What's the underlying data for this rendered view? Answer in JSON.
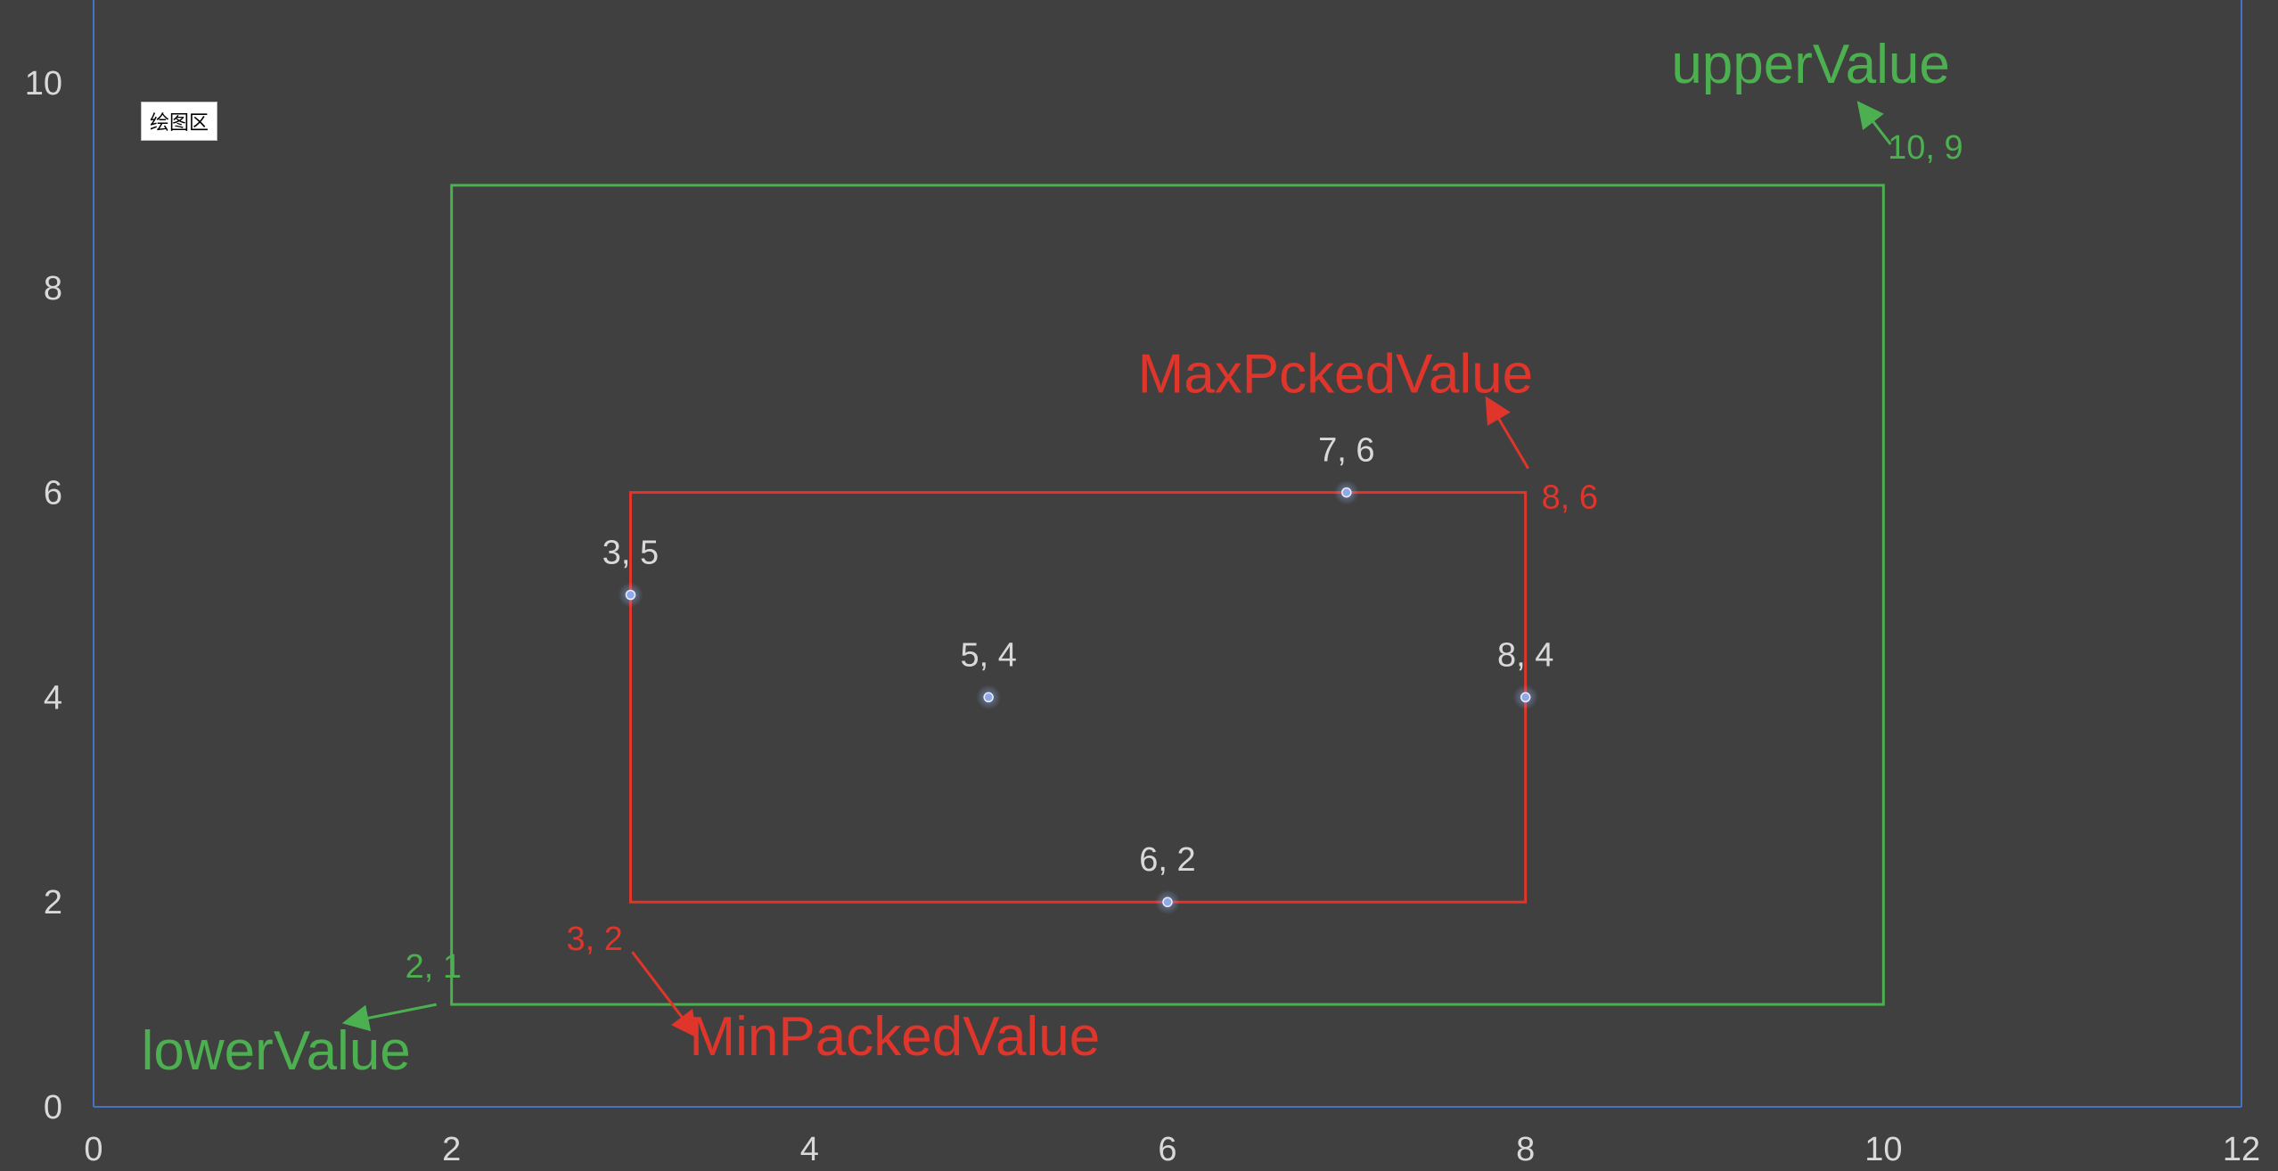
{
  "plot_area_label": "绘图区",
  "colors": {
    "background": "#404040",
    "axis": "#4472c4",
    "tick_text": "#d9d9d9",
    "outer_box": "#4caf50",
    "inner_box": "#e0352b",
    "point": "#8fa9e8"
  },
  "chart_data": {
    "type": "scatter",
    "xlim": [
      0,
      12
    ],
    "ylim": [
      0,
      10
    ],
    "x_ticks": [
      0,
      2,
      4,
      6,
      8,
      10,
      12
    ],
    "y_ticks": [
      0,
      2,
      4,
      6,
      8,
      10
    ],
    "grid": false,
    "points": [
      {
        "x": 3,
        "y": 5,
        "label": "3, 5"
      },
      {
        "x": 5,
        "y": 4,
        "label": "5, 4"
      },
      {
        "x": 7,
        "y": 6,
        "label": "7, 6"
      },
      {
        "x": 8,
        "y": 4,
        "label": "8, 4"
      },
      {
        "x": 6,
        "y": 2,
        "label": "6, 2"
      }
    ],
    "outer_box": {
      "lower": {
        "x": 2,
        "y": 1,
        "label": "2, 1",
        "name": "lowerValue"
      },
      "upper": {
        "x": 10,
        "y": 9,
        "label": "10, 9",
        "name": "upperValue"
      }
    },
    "inner_box": {
      "lower": {
        "x": 3,
        "y": 2,
        "label": "3, 2",
        "name": "MinPackedValue"
      },
      "upper": {
        "x": 8,
        "y": 6,
        "label": "8, 6",
        "name": "MaxPckedValue"
      }
    }
  }
}
